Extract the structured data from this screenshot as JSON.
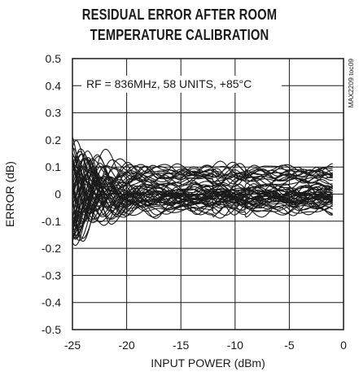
{
  "chart_data": {
    "type": "line",
    "title_line1": "RESIDUAL ERROR AFTER ROOM",
    "title_line2": "TEMPERATURE CALIBRATION",
    "xlabel": "INPUT POWER (dBm)",
    "ylabel": "ERROR (dB)",
    "annotation": "RF = 836MHz, 58 UNITS, +85°C",
    "part_code": "MAX2209 toc09",
    "xlim": [
      -25,
      0
    ],
    "ylim": [
      -0.5,
      0.5
    ],
    "x_ticks": [
      -25,
      -20,
      -15,
      -10,
      -5,
      0
    ],
    "x_tick_labels": [
      "-25",
      "-20",
      "-15",
      "-10",
      "-5",
      "0"
    ],
    "y_ticks": [
      -0.5,
      -0.4,
      -0.3,
      -0.2,
      -0.1,
      0,
      0.1,
      0.2,
      0.3,
      0.4,
      0.5
    ],
    "y_tick_labels": [
      "-0.5",
      "-0.4",
      "-0.3",
      "-0.2",
      "-0.1",
      "0",
      "0.1",
      "0.2",
      "0.3",
      "0.4",
      "0.5"
    ],
    "grid": true,
    "series_count": 58,
    "x_range_data": [
      -25,
      -1
    ],
    "line_color": "#1a1a1a"
  }
}
